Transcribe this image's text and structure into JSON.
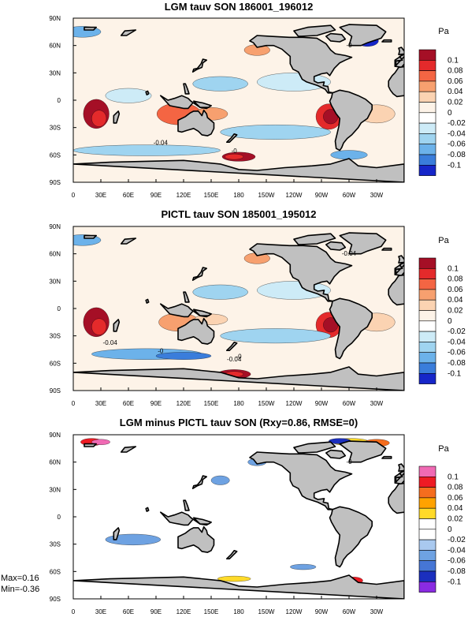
{
  "chart_data": [
    {
      "type": "heatmap",
      "title": "LGM tauv SON 186001_196012",
      "x_ticks": [
        "0",
        "30E",
        "60E",
        "90E",
        "120E",
        "150E",
        "180",
        "150W",
        "120W",
        "90W",
        "60W",
        "30W"
      ],
      "y_ticks": [
        "90N",
        "60N",
        "30N",
        "0",
        "30S",
        "60S",
        "90S"
      ],
      "colorbar_unit": "Pa",
      "colorbar_labels": [
        "0.1",
        "0.08",
        "0.06",
        "0.04",
        "0.02",
        "0",
        "-0.02",
        "-0.04",
        "-0.06",
        "-0.08",
        "-0.1"
      ],
      "colorbar_colors": [
        "#a50f26",
        "#e42a2b",
        "#f46543",
        "#f7a06f",
        "#fbd3b2",
        "#fdf3e8",
        "#ffffff",
        "#cdebf7",
        "#9fd4f0",
        "#6cb2ea",
        "#3a7ddb",
        "#1626c9"
      ],
      "contour_labels": [
        "-0",
        "-0.04",
        "-0"
      ],
      "grid": false
    },
    {
      "type": "heatmap",
      "title": "PICTL tauv SON 185001_195012",
      "x_ticks": [
        "0",
        "30E",
        "60E",
        "90E",
        "120E",
        "150E",
        "180",
        "150W",
        "120W",
        "90W",
        "60W",
        "30W"
      ],
      "y_ticks": [
        "90N",
        "60N",
        "30N",
        "0",
        "30S",
        "60S",
        "90S"
      ],
      "colorbar_unit": "Pa",
      "colorbar_labels": [
        "0.1",
        "0.08",
        "0.06",
        "0.04",
        "0.02",
        "0",
        "-0.02",
        "-0.04",
        "-0.06",
        "-0.08",
        "-0.1"
      ],
      "colorbar_colors": [
        "#a50f26",
        "#e42a2b",
        "#f46543",
        "#f7a06f",
        "#fbd3b2",
        "#fdf3e8",
        "#ffffff",
        "#cdebf7",
        "#9fd4f0",
        "#6cb2ea",
        "#3a7ddb",
        "#1626c9"
      ],
      "contour_labels": [
        "-0.04",
        "-0",
        "-0.04",
        "-0.04",
        "-0"
      ],
      "grid": false
    },
    {
      "type": "heatmap",
      "title": "LGM minus PICTL tauv SON (Rxy=0.86, RMSE=0)",
      "x_ticks": [
        "0",
        "30E",
        "60E",
        "90E",
        "120E",
        "150E",
        "180",
        "150W",
        "120W",
        "90W",
        "60W",
        "30W"
      ],
      "y_ticks": [
        "90N",
        "60N",
        "30N",
        "0",
        "30S",
        "60S",
        "90S"
      ],
      "colorbar_unit": "Pa",
      "colorbar_labels": [
        "0.1",
        "0.08",
        "0.06",
        "0.04",
        "0.02",
        "0",
        "-0.02",
        "-0.04",
        "-0.06",
        "-0.08",
        "-0.1"
      ],
      "colorbar_colors": [
        "#f06ab4",
        "#ee1b24",
        "#f56d1e",
        "#ffa200",
        "#ffda29",
        "#ffffff",
        "#ffffff",
        "#a9c9ef",
        "#6ea2e2",
        "#4676d5",
        "#1b2fbe",
        "#8a2be2"
      ],
      "contour_labels": [
        "-0"
      ],
      "stats": {
        "max": "Max=0.16",
        "min": "Min=-0.36"
      },
      "grid": false
    }
  ]
}
